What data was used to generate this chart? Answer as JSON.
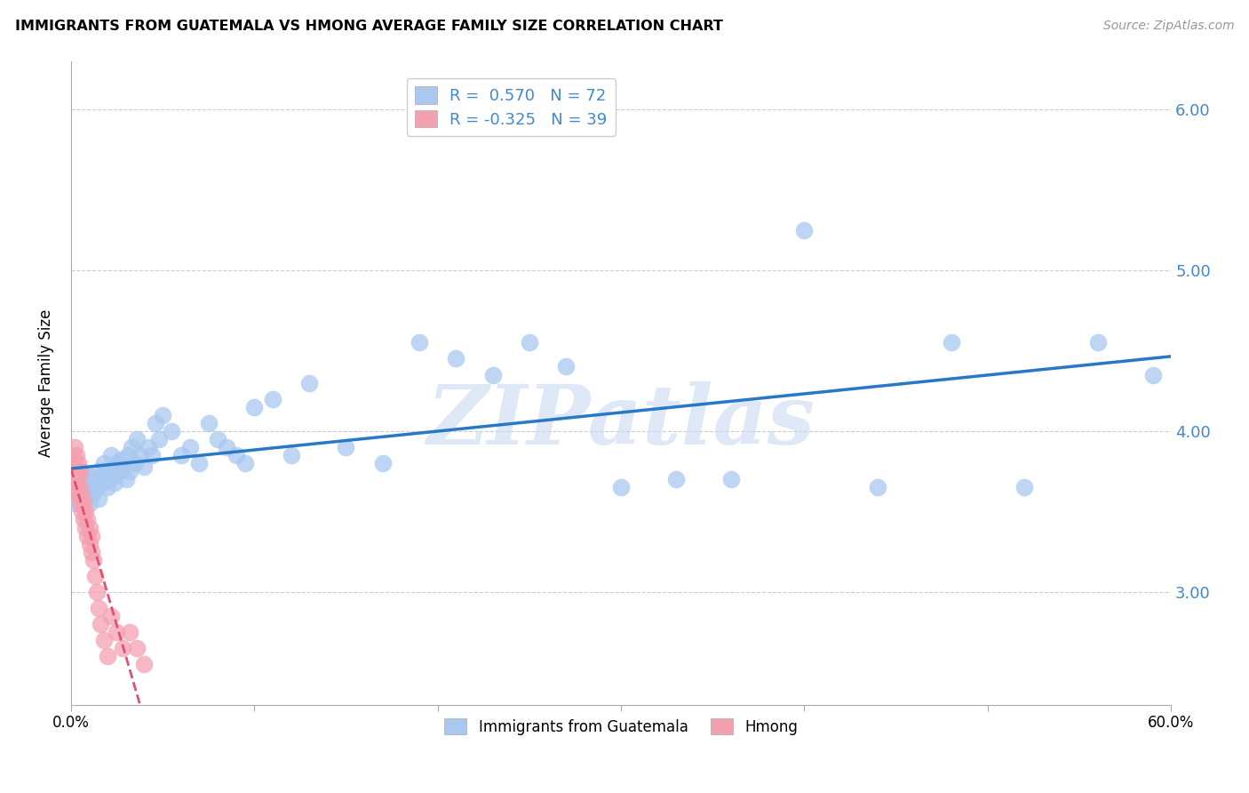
{
  "title": "IMMIGRANTS FROM GUATEMALA VS HMONG AVERAGE FAMILY SIZE CORRELATION CHART",
  "source": "Source: ZipAtlas.com",
  "ylabel": "Average Family Size",
  "xlim": [
    0.0,
    0.6
  ],
  "ylim": [
    2.3,
    6.3
  ],
  "yticks": [
    3.0,
    4.0,
    5.0,
    6.0
  ],
  "xticks": [
    0.0,
    0.1,
    0.2,
    0.3,
    0.4,
    0.5,
    0.6
  ],
  "xticklabels": [
    "0.0%",
    "",
    "",
    "",
    "",
    "",
    "60.0%"
  ],
  "yticklabels_right": [
    "3.00",
    "4.00",
    "5.00",
    "6.00"
  ],
  "R_blue": 0.57,
  "N_blue": 72,
  "R_pink": -0.325,
  "N_pink": 39,
  "blue_color": "#a8c8f0",
  "pink_color": "#f4a0b0",
  "blue_line_color": "#2878c8",
  "pink_line_color": "#e05070",
  "right_axis_color": "#4488cc",
  "legend_num_color": "#4488cc",
  "watermark_color": "#c8daf0",
  "watermark": "ZIPatlas",
  "legend_label_blue": "Immigrants from Guatemala",
  "legend_label_pink": "Hmong",
  "blue_scatter_x": [
    0.002,
    0.003,
    0.004,
    0.005,
    0.006,
    0.007,
    0.008,
    0.009,
    0.01,
    0.01,
    0.011,
    0.012,
    0.013,
    0.014,
    0.015,
    0.015,
    0.016,
    0.017,
    0.018,
    0.019,
    0.02,
    0.021,
    0.022,
    0.022,
    0.023,
    0.024,
    0.025,
    0.026,
    0.027,
    0.028,
    0.03,
    0.031,
    0.032,
    0.033,
    0.035,
    0.036,
    0.038,
    0.04,
    0.042,
    0.044,
    0.046,
    0.048,
    0.05,
    0.055,
    0.06,
    0.065,
    0.07,
    0.075,
    0.08,
    0.085,
    0.09,
    0.095,
    0.1,
    0.11,
    0.12,
    0.13,
    0.15,
    0.17,
    0.19,
    0.21,
    0.23,
    0.25,
    0.27,
    0.3,
    0.33,
    0.36,
    0.4,
    0.44,
    0.48,
    0.52,
    0.56,
    0.59
  ],
  "blue_scatter_y": [
    3.55,
    3.7,
    3.65,
    3.6,
    3.75,
    3.6,
    3.7,
    3.65,
    3.55,
    3.72,
    3.68,
    3.62,
    3.7,
    3.65,
    3.75,
    3.58,
    3.72,
    3.68,
    3.8,
    3.75,
    3.65,
    3.7,
    3.75,
    3.85,
    3.72,
    3.68,
    3.8,
    3.75,
    3.82,
    3.78,
    3.7,
    3.85,
    3.75,
    3.9,
    3.8,
    3.95,
    3.85,
    3.78,
    3.9,
    3.85,
    4.05,
    3.95,
    4.1,
    4.0,
    3.85,
    3.9,
    3.8,
    4.05,
    3.95,
    3.9,
    3.85,
    3.8,
    4.15,
    4.2,
    3.85,
    4.3,
    3.9,
    3.8,
    4.55,
    4.45,
    4.35,
    4.55,
    4.4,
    3.65,
    3.7,
    3.7,
    5.25,
    3.65,
    4.55,
    3.65,
    4.55,
    4.35
  ],
  "pink_scatter_x": [
    0.001,
    0.001,
    0.002,
    0.002,
    0.002,
    0.003,
    0.003,
    0.003,
    0.004,
    0.004,
    0.004,
    0.005,
    0.005,
    0.005,
    0.006,
    0.006,
    0.007,
    0.007,
    0.008,
    0.008,
    0.009,
    0.009,
    0.01,
    0.01,
    0.011,
    0.011,
    0.012,
    0.013,
    0.014,
    0.015,
    0.016,
    0.018,
    0.02,
    0.022,
    0.025,
    0.028,
    0.032,
    0.036,
    0.04
  ],
  "pink_scatter_y": [
    3.85,
    3.75,
    3.8,
    3.7,
    3.9,
    3.75,
    3.65,
    3.85,
    3.7,
    3.6,
    3.8,
    3.65,
    3.55,
    3.75,
    3.6,
    3.5,
    3.55,
    3.45,
    3.5,
    3.4,
    3.35,
    3.45,
    3.3,
    3.4,
    3.25,
    3.35,
    3.2,
    3.1,
    3.0,
    2.9,
    2.8,
    2.7,
    2.6,
    2.85,
    2.75,
    2.65,
    2.75,
    2.65,
    2.55
  ]
}
